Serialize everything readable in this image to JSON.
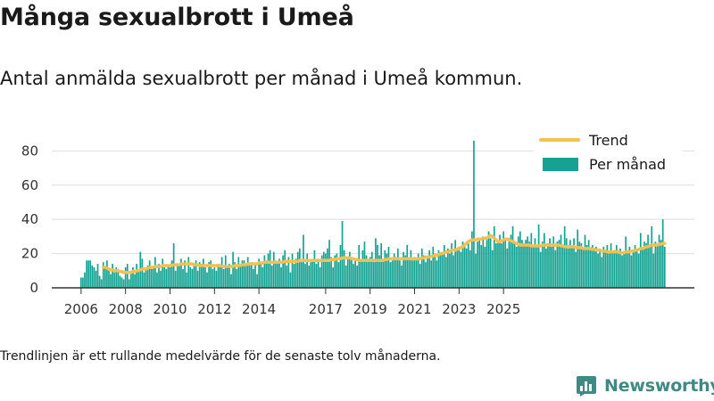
{
  "title": "Många sexualbrott i Umeå",
  "subtitle": "Antal anmälda sexualbrott per månad i Umeå kommun.",
  "footnote": "Trendlinjen är ett rullande medelvärde för de senaste tolv månaderna.",
  "brand": {
    "name": "Newsworthy",
    "icon": "bar-chart-logo-icon",
    "color": "#3f8a84"
  },
  "colors": {
    "bar": "#14a392",
    "trend": "#f5c04f",
    "grid": "#dddddd",
    "axis": "#333333"
  },
  "chart_data": {
    "type": "bar",
    "title": "Många sexualbrott i Umeå",
    "subtitle": "Antal anmälda sexualbrott per månad i Umeå kommun.",
    "xlabel": "",
    "ylabel": "",
    "x_start": "2006-01",
    "yticks": [
      0,
      20,
      40,
      60,
      80
    ],
    "xticks": [
      "2006",
      "2008",
      "2010",
      "2012",
      "2014",
      "2017",
      "2019",
      "2021",
      "2023",
      "2025"
    ],
    "ylim": [
      0,
      88
    ],
    "grid": "horizontal",
    "legend_position": "top-right",
    "series": [
      {
        "name": "Per månad",
        "kind": "bar",
        "values": [
          6,
          6,
          9,
          16,
          16,
          16,
          13,
          12,
          10,
          14,
          7,
          5,
          15,
          12,
          16,
          10,
          8,
          14,
          9,
          12,
          11,
          7,
          6,
          5,
          12,
          14,
          5,
          9,
          12,
          8,
          14,
          10,
          21,
          17,
          9,
          11,
          13,
          16,
          11,
          12,
          18,
          9,
          14,
          10,
          17,
          12,
          11,
          13,
          12,
          16,
          26,
          10,
          14,
          13,
          17,
          11,
          16,
          9,
          18,
          12,
          11,
          13,
          16,
          10,
          15,
          14,
          17,
          12,
          9,
          15,
          16,
          11,
          12,
          10,
          14,
          13,
          18,
          11,
          19,
          12,
          14,
          8,
          21,
          15,
          11,
          18,
          13,
          16,
          16,
          14,
          18,
          13,
          15,
          11,
          14,
          8,
          17,
          14,
          12,
          19,
          16,
          20,
          22,
          13,
          21,
          16,
          14,
          17,
          12,
          19,
          22,
          13,
          18,
          9,
          20,
          14,
          17,
          21,
          23,
          15,
          31,
          14,
          20,
          13,
          15,
          16,
          22,
          14,
          17,
          12,
          19,
          21,
          20,
          23,
          28,
          18,
          12,
          19,
          20,
          15,
          25,
          39,
          22,
          13,
          17,
          21,
          18,
          14,
          16,
          13,
          25,
          16,
          22,
          27,
          19,
          17,
          18,
          21,
          15,
          29,
          25,
          19,
          26,
          17,
          22,
          20,
          24,
          15,
          16,
          20,
          18,
          23,
          16,
          13,
          21,
          19,
          25,
          17,
          22,
          16,
          18,
          16,
          20,
          14,
          23,
          19,
          15,
          18,
          22,
          16,
          24,
          20,
          16,
          22,
          19,
          21,
          25,
          18,
          23,
          20,
          26,
          19,
          28,
          22,
          24,
          21,
          27,
          25,
          23,
          26,
          22,
          33,
          86,
          20,
          27,
          29,
          25,
          30,
          24,
          28,
          33,
          29,
          22,
          36,
          26,
          27,
          31,
          26,
          33,
          28,
          23,
          29,
          31,
          36,
          27,
          24,
          30,
          33,
          28,
          26,
          28,
          30,
          27,
          32,
          25,
          29,
          25,
          37,
          21,
          27,
          32,
          23,
          26,
          29,
          24,
          30,
          22,
          27,
          28,
          31,
          25,
          36,
          29,
          23,
          28,
          24,
          29,
          21,
          34,
          27,
          26,
          23,
          31,
          25,
          28,
          22,
          25,
          22,
          24,
          20,
          23,
          18,
          24,
          22,
          25,
          20,
          26,
          21,
          22,
          25,
          20,
          23,
          19,
          21,
          30,
          22,
          24,
          19,
          22,
          25,
          22,
          20,
          32,
          23,
          27,
          26,
          31,
          24,
          36,
          20,
          27,
          25,
          31,
          28,
          40,
          24
        ]
      },
      {
        "name": "Trend",
        "kind": "line",
        "values": [
          null,
          null,
          null,
          null,
          null,
          null,
          null,
          null,
          null,
          null,
          null,
          null,
          12,
          12,
          11.5,
          11,
          10.5,
          10.5,
          10,
          10,
          10,
          9.5,
          9.5,
          9,
          9,
          9,
          9,
          9,
          9.5,
          9.5,
          10,
          10,
          10.5,
          11,
          11,
          11,
          11.5,
          12,
          12,
          12,
          12.5,
          12.5,
          12.5,
          12.5,
          13,
          13,
          13,
          13,
          13,
          13,
          13.5,
          13.5,
          13.5,
          13.5,
          14,
          14,
          14,
          14,
          14,
          14,
          14,
          13.5,
          13.5,
          13.5,
          13,
          13,
          13,
          13,
          13,
          13,
          13,
          13,
          13,
          13,
          13,
          13,
          12.5,
          12.5,
          12.5,
          12.5,
          12.5,
          12.5,
          12.5,
          13,
          13,
          13,
          13,
          13.5,
          13.5,
          13.5,
          14,
          14,
          14,
          14,
          14,
          14,
          14.5,
          14.5,
          14.5,
          15,
          15,
          15,
          15,
          15,
          15,
          15,
          15,
          15,
          15,
          15,
          15.5,
          15.5,
          15.5,
          15.5,
          15.5,
          15.5,
          15.5,
          15.5,
          16,
          16,
          16,
          16,
          16,
          16,
          16,
          16,
          16,
          16,
          16,
          16,
          16,
          16,
          16,
          16,
          16,
          16.5,
          16.5,
          16.5,
          17,
          17,
          17,
          17.5,
          17.5,
          17.5,
          17.5,
          17.5,
          17,
          17,
          16.5,
          16.5,
          16,
          16,
          16,
          16,
          16,
          16,
          16,
          16,
          16,
          16,
          16,
          16,
          16,
          16,
          16.5,
          16.5,
          17,
          17,
          17,
          17,
          17,
          17,
          17,
          17,
          17,
          17,
          17,
          17,
          17,
          17,
          17,
          17,
          17,
          17,
          17.5,
          17.5,
          18,
          18,
          18,
          18.5,
          18.5,
          19,
          19,
          19.5,
          20,
          20,
          20.5,
          21,
          21,
          21.5,
          22,
          22,
          22,
          22.5,
          23,
          23.5,
          24,
          25,
          26,
          27,
          27.5,
          28,
          28,
          28,
          28.5,
          28.5,
          28.5,
          29,
          29,
          29,
          30,
          30.5,
          30,
          29,
          28,
          27,
          27,
          27.5,
          28,
          28.5,
          28.5,
          28,
          27.5,
          27,
          26.5,
          26,
          25.5,
          25,
          25,
          25,
          25,
          25,
          25,
          24.5,
          24.5,
          24.5,
          24.5,
          24.5,
          24.5,
          25,
          25,
          25,
          25,
          25,
          25,
          25,
          25,
          25,
          25,
          24.5,
          24.5,
          24,
          24,
          24,
          24,
          24,
          24,
          23.5,
          23.5,
          23.5,
          23.5,
          23,
          23,
          23,
          23,
          23,
          22.5,
          22.5,
          22,
          22,
          22,
          21.5,
          21.5,
          21.5,
          21,
          21,
          21,
          21,
          21,
          21,
          21,
          20.5,
          20.5,
          20.5,
          21,
          21,
          21,
          21.5,
          21.5,
          22,
          22,
          22.5,
          23,
          23,
          23.5,
          24,
          24,
          24.5,
          25,
          25,
          25,
          25,
          25.5,
          25.5,
          26,
          26
        ]
      }
    ]
  }
}
